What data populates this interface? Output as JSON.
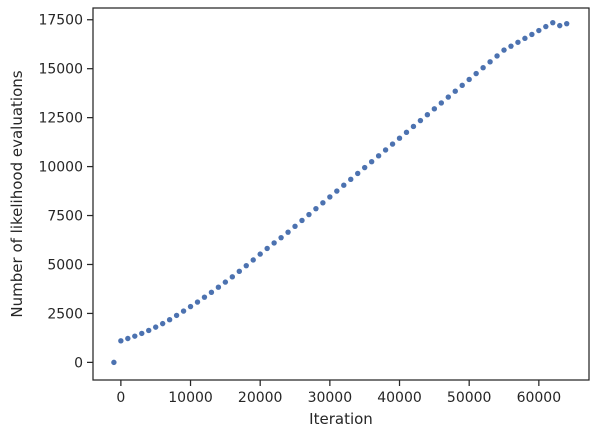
{
  "chart_data": {
    "type": "scatter",
    "title": "",
    "xlabel": "Iteration",
    "ylabel": "Number of likelihood evaluations",
    "xlim": [
      -4000,
      67200
    ],
    "ylim": [
      -900,
      18100
    ],
    "xticks": [
      0,
      10000,
      20000,
      30000,
      40000,
      50000,
      60000
    ],
    "xtick_labels": [
      "0",
      "10000",
      "20000",
      "30000",
      "40000",
      "50000",
      "60000"
    ],
    "yticks": [
      0,
      2500,
      5000,
      7500,
      10000,
      12500,
      15000,
      17500
    ],
    "ytick_labels": [
      "0",
      "2500",
      "5000",
      "7500",
      "10000",
      "12500",
      "15000",
      "17500"
    ],
    "grid": false,
    "legend": "none",
    "marker_color": "#4c72b0",
    "series": [
      {
        "x": [
          -1000,
          0,
          1000,
          2000,
          3000,
          4000,
          5000,
          6000,
          7000,
          8000,
          9000,
          10000,
          11000,
          12000,
          13000,
          14000,
          15000,
          16000,
          17000,
          18000,
          19000,
          20000,
          21000,
          22000,
          23000,
          24000,
          25000,
          26000,
          27000,
          28000,
          29000,
          30000,
          31000,
          32000,
          33000,
          34000,
          35000,
          36000,
          37000,
          38000,
          39000,
          40000,
          41000,
          42000,
          43000,
          44000,
          45000,
          46000,
          47000,
          48000,
          49000,
          50000,
          51000,
          52000,
          53000,
          54000,
          55000,
          56000,
          57000,
          58000,
          59000,
          60000,
          61000,
          62000,
          63000,
          64000
        ],
        "y": [
          0,
          1100,
          1220,
          1340,
          1480,
          1630,
          1800,
          1980,
          2180,
          2400,
          2620,
          2850,
          3080,
          3330,
          3580,
          3840,
          4100,
          4370,
          4650,
          4940,
          5230,
          5530,
          5820,
          6100,
          6370,
          6650,
          6950,
          7250,
          7550,
          7850,
          8150,
          8450,
          8750,
          9050,
          9350,
          9650,
          9950,
          10250,
          10550,
          10850,
          11150,
          11450,
          11750,
          12050,
          12350,
          12650,
          12950,
          13250,
          13550,
          13850,
          14150,
          14450,
          14750,
          15050,
          15350,
          15650,
          15950,
          16150,
          16350,
          16550,
          16750,
          16950,
          17150,
          17350,
          17200,
          17300
        ]
      }
    ]
  }
}
